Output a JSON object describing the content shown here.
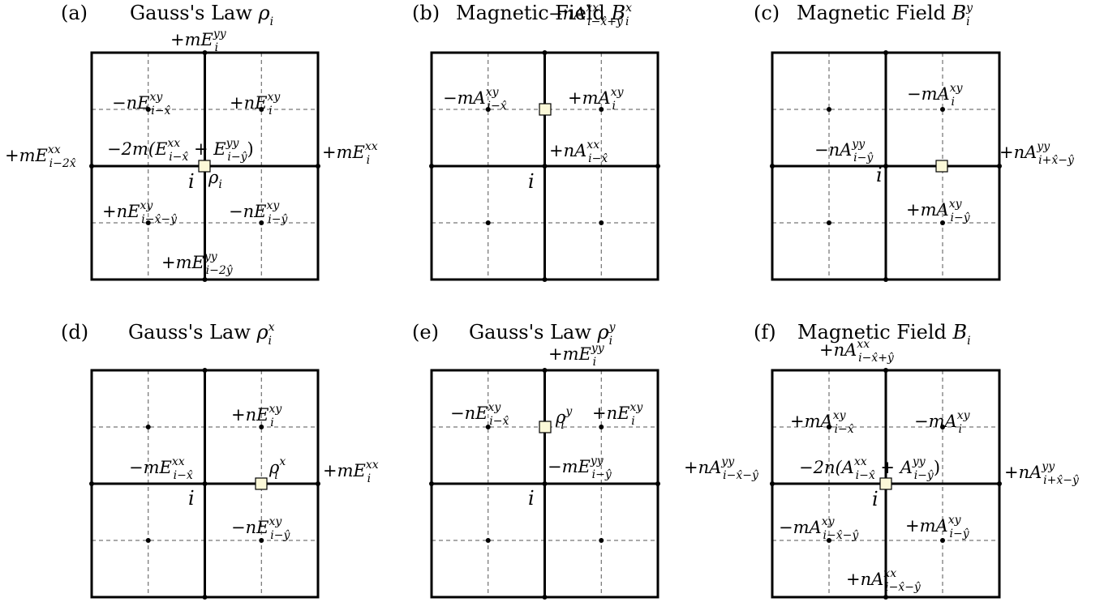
{
  "panels": [
    {
      "letter": "(a)",
      "title": {
        "text": "Gauss's Law ",
        "sym": "ρ",
        "sup": "",
        "sub": "i"
      },
      "site": "i",
      "labels": [
        {
          "main": "+mE",
          "sup": "yy",
          "sub": "i"
        },
        {
          "main": "−nE",
          "sup": "xy",
          "sub": "i−x̂"
        },
        {
          "main": "+nE",
          "sup": "xy",
          "sub": "i"
        },
        {
          "main": "−2m(E",
          "sup": "xx",
          "sub": "i−x̂",
          "tail": " + E",
          "sup2": "yy",
          "sub2": "i−ŷ",
          "end": ")"
        },
        {
          "main": "+mE",
          "sup": "xx",
          "sub": "i−2x̂"
        },
        {
          "main": "+mE",
          "sup": "xx",
          "sub": "i"
        },
        {
          "main": "ρ",
          "sup": "",
          "sub": "i"
        },
        {
          "main": "+nE",
          "sup": "xy",
          "sub": "i−x̂−ŷ"
        },
        {
          "main": "−nE",
          "sup": "xy",
          "sub": "i−ŷ"
        },
        {
          "main": "+mE",
          "sup": "yy",
          "sub": "i−2ŷ"
        }
      ]
    },
    {
      "letter": "(b)",
      "title": {
        "text": "Magnetic Field ",
        "sym": "B",
        "sup": "x",
        "sub": "i"
      },
      "site": "i",
      "labels": [
        {
          "main": "−nA",
          "sup": "xx",
          "sub": "i−x̂+ŷ"
        },
        {
          "main": "−mA",
          "sup": "xy",
          "sub": "i−x̂"
        },
        {
          "main": "+mA",
          "sup": "xy",
          "sub": "i"
        },
        {
          "main": "+nA",
          "sup": "xx",
          "sub": "i−x̂"
        }
      ]
    },
    {
      "letter": "(c)",
      "title": {
        "text": "Magnetic Field ",
        "sym": "B",
        "sup": "y",
        "sub": "i"
      },
      "site": "i",
      "labels": [
        {
          "main": "−mA",
          "sup": "xy",
          "sub": "i"
        },
        {
          "main": "−nA",
          "sup": "yy",
          "sub": "i−ŷ"
        },
        {
          "main": "+nA",
          "sup": "yy",
          "sub": "i+x̂−ŷ"
        },
        {
          "main": "+mA",
          "sup": "xy",
          "sub": "i−ŷ"
        }
      ]
    },
    {
      "letter": "(d)",
      "title": {
        "text": "Gauss's Law ",
        "sym": "ρ",
        "sup": "x",
        "sub": "i"
      },
      "site": "i",
      "labels": [
        {
          "main": "+nE",
          "sup": "xy",
          "sub": "i"
        },
        {
          "main": "−mE",
          "sup": "xx",
          "sub": "i−x̂"
        },
        {
          "main": "ρ",
          "sup": "x",
          "sub": "i"
        },
        {
          "main": "+mE",
          "sup": "xx",
          "sub": "i"
        },
        {
          "main": "−nE",
          "sup": "xy",
          "sub": "i−ŷ"
        }
      ]
    },
    {
      "letter": "(e)",
      "title": {
        "text": "Gauss's Law ",
        "sym": "ρ",
        "sup": "y",
        "sub": "i"
      },
      "site": "i",
      "labels": [
        {
          "main": "+mE",
          "sup": "yy",
          "sub": "i"
        },
        {
          "main": "−nE",
          "sup": "xy",
          "sub": "i−x̂"
        },
        {
          "main": "ρ",
          "sup": "y",
          "sub": "i"
        },
        {
          "main": "+nE",
          "sup": "xy",
          "sub": "i"
        },
        {
          "main": "−mE",
          "sup": "yy",
          "sub": "i−ŷ"
        }
      ]
    },
    {
      "letter": "(f)",
      "title": {
        "text": "Magnetic Field ",
        "sym": "B",
        "sup": "",
        "sub": "i"
      },
      "site": "i",
      "labels": [
        {
          "main": "+nA",
          "sup": "xx",
          "sub": "i−x̂+ŷ"
        },
        {
          "main": "+mA",
          "sup": "xy",
          "sub": "i−x̂"
        },
        {
          "main": "−mA",
          "sup": "xy",
          "sub": "i"
        },
        {
          "main": "−2n(A",
          "sup": "xx",
          "sub": "i−x̂",
          "tail": " + A",
          "sup2": "yy",
          "sub2": "i−ŷ",
          "end": ")"
        },
        {
          "main": "+nA",
          "sup": "yy",
          "sub": "i−x̂−ŷ"
        },
        {
          "main": "+nA",
          "sup": "yy",
          "sub": "i+x̂−ŷ"
        },
        {
          "main": "−mA",
          "sup": "xy",
          "sub": "i−x̂−ŷ"
        },
        {
          "main": "+mA",
          "sup": "xy",
          "sub": "i−ŷ"
        },
        {
          "main": "+nA",
          "sup": "xx",
          "sub": "i−x̂−ŷ"
        }
      ]
    }
  ]
}
